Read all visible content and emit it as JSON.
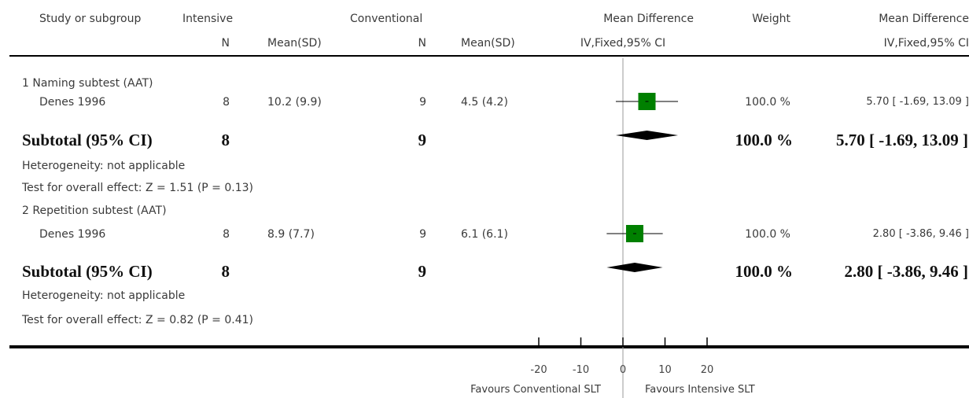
{
  "header": {
    "study_or_subgroup": "Study or subgroup",
    "intensive": "Intensive",
    "conventional": "Conventional",
    "mean_difference": "Mean Difference",
    "weight": "Weight",
    "mean_difference_right": "Mean Difference",
    "n_intensive": "N",
    "mean_sd_intensive": "Mean(SD)",
    "n_conventional": "N",
    "mean_sd_conventional": "Mean(SD)",
    "method_plot": "IV,Fixed,95% CI",
    "method_right": "IV,Fixed,95% CI"
  },
  "groups": [
    {
      "title": "1 Naming subtest (AAT)",
      "study": {
        "name": "Denes 1996",
        "n_int": "8",
        "mean_sd_int": "10.2 (9.9)",
        "n_conv": "9",
        "mean_sd_conv": "4.5 (4.2)",
        "weight": "100.0 %",
        "ci_text": "5.70 [ -1.69, 13.09 ]"
      },
      "subtotal": {
        "label": "Subtotal (95% CI)",
        "n_int": "8",
        "n_conv": "9",
        "weight": "100.0 %",
        "ci_text": "5.70 [ -1.69, 13.09 ]"
      },
      "heterogeneity": "Heterogeneity: not applicable",
      "overall_effect": "Test for overall effect: Z = 1.51 (P = 0.13)"
    },
    {
      "title": "2 Repetition subtest (AAT)",
      "study": {
        "name": "Denes 1996",
        "n_int": "8",
        "mean_sd_int": "8.9 (7.7)",
        "n_conv": "9",
        "mean_sd_conv": "6.1 (6.1)",
        "weight": "100.0 %",
        "ci_text": "2.80 [ -3.86, 9.46 ]"
      },
      "subtotal": {
        "label": "Subtotal (95% CI)",
        "n_int": "8",
        "n_conv": "9",
        "weight": "100.0 %",
        "ci_text": "2.80 [ -3.86, 9.46 ]"
      },
      "heterogeneity": "Heterogeneity: not applicable",
      "overall_effect": "Test for overall effect: Z = 0.82 (P = 0.41)"
    }
  ],
  "axis": {
    "favours_left": "Favours Conventional SLT",
    "favours_right": "Favours Intensive SLT"
  },
  "colors": {
    "study_box": "#008000",
    "diamond": "#000000",
    "zero_line": "#999999"
  },
  "chart_data": {
    "type": "forest",
    "xlim": [
      -20,
      20
    ],
    "ticks": [
      -20,
      -10,
      0,
      10,
      20
    ],
    "tick_labels": [
      "-20",
      "-10",
      "0",
      "10",
      "20"
    ],
    "studies": [
      {
        "group": "1 Naming subtest (AAT)",
        "name": "Denes 1996",
        "kind": "study",
        "estimate": 5.7,
        "ci_low": -1.69,
        "ci_high": 13.09,
        "weight": 100.0
      },
      {
        "group": "1 Naming subtest (AAT)",
        "name": "Subtotal (95% CI)",
        "kind": "subtotal",
        "estimate": 5.7,
        "ci_low": -1.69,
        "ci_high": 13.09,
        "weight": 100.0
      },
      {
        "group": "2 Repetition subtest (AAT)",
        "name": "Denes 1996",
        "kind": "study",
        "estimate": 2.8,
        "ci_low": -3.86,
        "ci_high": 9.46,
        "weight": 100.0
      },
      {
        "group": "2 Repetition subtest (AAT)",
        "name": "Subtotal (95% CI)",
        "kind": "subtotal",
        "estimate": 2.8,
        "ci_low": -3.86,
        "ci_high": 9.46,
        "weight": 100.0
      }
    ]
  }
}
